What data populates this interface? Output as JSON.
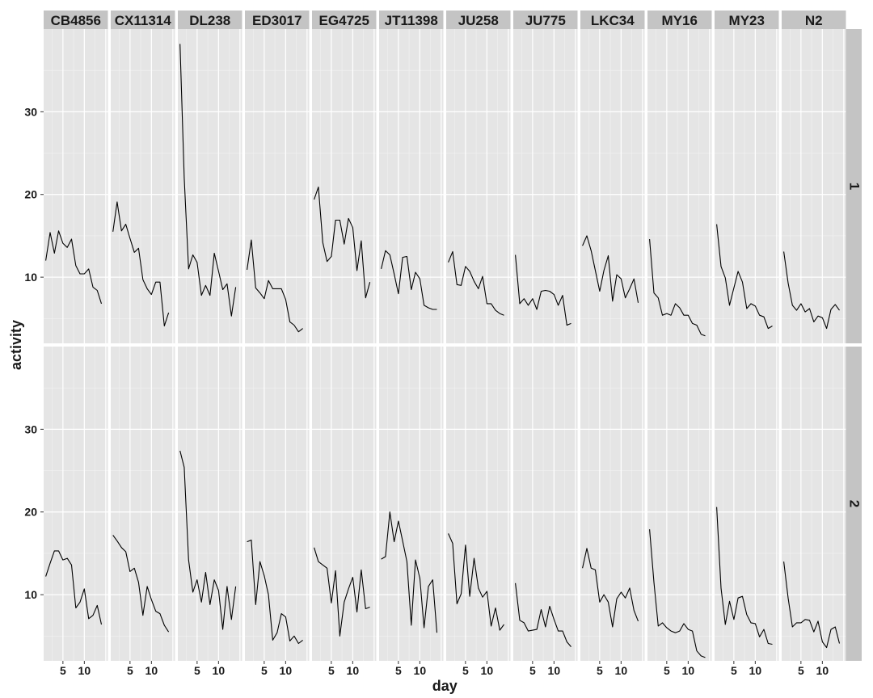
{
  "chart_data": {
    "type": "line",
    "xlabel": "day",
    "ylabel": "activity",
    "x_ticks": [
      5,
      10
    ],
    "y_ticks": [
      10,
      20,
      30
    ],
    "xlim": [
      0.5,
      15.5
    ],
    "ylim": [
      2,
      40
    ],
    "grid": true,
    "panel_background": "#e5e5e5",
    "strip_color": "#c4c4c4",
    "line_color": "#000000",
    "facet_rows": [
      "1",
      "2"
    ],
    "facet_cols": [
      "CB4856",
      "CX11314",
      "DL238",
      "ED3017",
      "EG4725",
      "JT11398",
      "JU258",
      "JU775",
      "LKC34",
      "MY16",
      "MY23",
      "N2"
    ],
    "panels": [
      {
        "row": "1",
        "col": "CB4856",
        "x": [
          1,
          2,
          3,
          4,
          5,
          6,
          7,
          8,
          9,
          10,
          11,
          12,
          13,
          14
        ],
        "y": [
          12,
          15.4,
          12.9,
          15.6,
          14.1,
          13.6,
          14.6,
          11.4,
          10.4,
          10.4,
          11,
          8.8,
          8.4,
          6.8
        ]
      },
      {
        "row": "1",
        "col": "CX11314",
        "x": [
          1,
          2,
          3,
          4,
          5,
          6,
          7,
          8,
          9,
          10,
          11,
          12,
          13,
          14
        ],
        "y": [
          15.5,
          19.1,
          15.6,
          16.4,
          14.7,
          13,
          13.5,
          9.7,
          8.6,
          7.9,
          9.4,
          9.4,
          4.1,
          5.7
        ]
      },
      {
        "row": "1",
        "col": "DL238",
        "x": [
          1,
          2,
          3,
          4,
          5,
          6,
          7,
          8,
          9,
          10,
          11,
          12,
          13,
          14
        ],
        "y": [
          38.2,
          22,
          11,
          12.7,
          11.8,
          7.8,
          9,
          7.8,
          12.9,
          10.7,
          8.5,
          9.2,
          5.3,
          8.8
        ]
      },
      {
        "row": "1",
        "col": "ED3017",
        "x": [
          1,
          2,
          3,
          4,
          5,
          6,
          7,
          8,
          9,
          10,
          11,
          12,
          13,
          14
        ],
        "y": [
          10.9,
          14.5,
          8.7,
          8.1,
          7.4,
          9.6,
          8.6,
          8.6,
          8.6,
          7.3,
          4.6,
          4.2,
          3.4,
          3.8
        ]
      },
      {
        "row": "1",
        "col": "EG4725",
        "x": [
          1,
          2,
          3,
          4,
          5,
          6,
          7,
          8,
          9,
          10,
          11,
          12,
          13,
          14
        ],
        "y": [
          19.4,
          20.9,
          14.2,
          11.9,
          12.5,
          16.9,
          16.9,
          14,
          17.1,
          16,
          10.8,
          14.4,
          7.5,
          9.4
        ]
      },
      {
        "row": "1",
        "col": "JT11398",
        "x": [
          1,
          2,
          3,
          4,
          5,
          6,
          7,
          8,
          9,
          10,
          11,
          12,
          13,
          14
        ],
        "y": [
          11,
          13.2,
          12.7,
          10.4,
          8,
          12.4,
          12.5,
          8.5,
          10.6,
          9.8,
          6.6,
          6.3,
          6.1,
          6.1
        ]
      },
      {
        "row": "1",
        "col": "JU258",
        "x": [
          1,
          2,
          3,
          4,
          5,
          6,
          7,
          8,
          9,
          10,
          11,
          12,
          13,
          14
        ],
        "y": [
          11.8,
          13.1,
          9.1,
          9,
          11.3,
          10.7,
          9.5,
          8.6,
          10.1,
          6.8,
          6.8,
          6,
          5.6,
          5.4
        ]
      },
      {
        "row": "1",
        "col": "JU775",
        "x": [
          1,
          2,
          3,
          4,
          5,
          6,
          7,
          8,
          9,
          10,
          11,
          12,
          13,
          14
        ],
        "y": [
          12.7,
          6.8,
          7.4,
          6.6,
          7.4,
          6.1,
          8.3,
          8.4,
          8.3,
          7.9,
          6.6,
          7.8,
          4.2,
          4.4
        ]
      },
      {
        "row": "1",
        "col": "LKC34",
        "x": [
          1,
          2,
          3,
          4,
          5,
          6,
          7,
          8,
          9,
          10,
          11,
          12,
          13,
          14
        ],
        "y": [
          13.8,
          15,
          13.2,
          10.8,
          8.3,
          10.8,
          12.6,
          7.1,
          10.3,
          9.8,
          7.5,
          8.6,
          9.8,
          6.9
        ]
      },
      {
        "row": "1",
        "col": "MY16",
        "x": [
          1,
          2,
          3,
          4,
          5,
          6,
          7,
          8,
          9,
          10,
          11,
          12,
          13,
          14
        ],
        "y": [
          14.6,
          8.1,
          7.5,
          5.4,
          5.6,
          5.4,
          6.8,
          6.3,
          5.4,
          5.4,
          4.4,
          4.2,
          3.1,
          2.9
        ]
      },
      {
        "row": "1",
        "col": "MY23",
        "x": [
          1,
          2,
          3,
          4,
          5,
          6,
          7,
          8,
          9,
          10,
          11,
          12,
          13,
          14
        ],
        "y": [
          16.4,
          11.3,
          9.9,
          6.6,
          8.7,
          10.7,
          9.4,
          6.2,
          6.8,
          6.5,
          5.4,
          5.2,
          3.8,
          4.1
        ]
      },
      {
        "row": "1",
        "col": "N2",
        "x": [
          1,
          2,
          3,
          4,
          5,
          6,
          7,
          8,
          9,
          10,
          11,
          12,
          13,
          14
        ],
        "y": [
          13.1,
          9.3,
          6.6,
          6,
          6.8,
          5.8,
          6.2,
          4.6,
          5.3,
          5.1,
          3.8,
          6.1,
          6.7,
          6
        ]
      },
      {
        "row": "2",
        "col": "CB4856",
        "x": [
          1,
          2,
          3,
          4,
          5,
          6,
          7,
          8,
          9,
          10,
          11,
          12,
          13,
          14
        ],
        "y": [
          12.2,
          13.8,
          15.3,
          15.3,
          14.2,
          14.4,
          13.6,
          8.4,
          9.1,
          10.7,
          7.1,
          7.5,
          8.7,
          6.4
        ]
      },
      {
        "row": "2",
        "col": "CX11314",
        "x": [
          1,
          2,
          3,
          4,
          5,
          6,
          7,
          8,
          9,
          10,
          11,
          12,
          13,
          14
        ],
        "y": [
          17.2,
          16.5,
          15.7,
          15.2,
          12.8,
          13.2,
          11.5,
          7.5,
          11,
          9.4,
          8,
          7.7,
          6.3,
          5.5
        ]
      },
      {
        "row": "2",
        "col": "DL238",
        "x": [
          1,
          2,
          3,
          4,
          5,
          6,
          7,
          8,
          9,
          10,
          11,
          12,
          13,
          14
        ],
        "y": [
          27.4,
          25.4,
          14.2,
          10.3,
          11.8,
          9.1,
          12.7,
          8.8,
          11.8,
          10.5,
          5.8,
          11,
          7,
          11
        ]
      },
      {
        "row": "2",
        "col": "ED3017",
        "x": [
          1,
          2,
          3,
          4,
          5,
          6,
          7,
          8,
          9,
          10,
          11,
          12,
          13,
          14
        ],
        "y": [
          16.4,
          16.6,
          8.8,
          14,
          12.3,
          10,
          4.5,
          5.4,
          7.7,
          7.3,
          4.4,
          5,
          4.1,
          4.5
        ]
      },
      {
        "row": "2",
        "col": "EG4725",
        "x": [
          1,
          2,
          3,
          4,
          5,
          6,
          7,
          8,
          9,
          10,
          11,
          12,
          13,
          14
        ],
        "y": [
          15.7,
          14,
          13.6,
          13.2,
          9,
          12.9,
          5,
          9.1,
          10.7,
          12.1,
          7.9,
          13,
          8.3,
          8.5
        ]
      },
      {
        "row": "2",
        "col": "JT11398",
        "x": [
          1,
          2,
          3,
          4,
          5,
          6,
          7,
          8,
          9,
          10,
          11,
          12,
          13,
          14
        ],
        "y": [
          14.3,
          14.6,
          20,
          16.4,
          18.9,
          16.5,
          14,
          6.3,
          14.2,
          12,
          6,
          11,
          11.8,
          5.4
        ]
      },
      {
        "row": "2",
        "col": "JU258",
        "x": [
          1,
          2,
          3,
          4,
          5,
          6,
          7,
          8,
          9,
          10,
          11,
          12,
          13,
          14
        ],
        "y": [
          17.4,
          16.2,
          8.9,
          10.1,
          16,
          9.8,
          14.4,
          10.8,
          9.7,
          10.4,
          6.2,
          8.4,
          5.7,
          6.4
        ]
      },
      {
        "row": "2",
        "col": "JU775",
        "x": [
          1,
          2,
          3,
          4,
          5,
          6,
          7,
          8,
          9,
          10,
          11,
          12,
          13,
          14
        ],
        "y": [
          11.4,
          6.9,
          6.6,
          5.6,
          5.7,
          5.8,
          8.2,
          6.1,
          8.6,
          7,
          5.6,
          5.6,
          4.3,
          3.7
        ]
      },
      {
        "row": "2",
        "col": "LKC34",
        "x": [
          1,
          2,
          3,
          4,
          5,
          6,
          7,
          8,
          9,
          10,
          11,
          12,
          13,
          14
        ],
        "y": [
          13.2,
          15.6,
          13.2,
          13,
          9.1,
          10,
          9.1,
          6.1,
          9.5,
          10.3,
          9.6,
          10.8,
          8.1,
          6.8
        ]
      },
      {
        "row": "2",
        "col": "MY16",
        "x": [
          1,
          2,
          3,
          4,
          5,
          6,
          7,
          8,
          9,
          10,
          11,
          12,
          13,
          14
        ],
        "y": [
          17.9,
          11.5,
          6.2,
          6.6,
          6,
          5.6,
          5.4,
          5.6,
          6.5,
          5.8,
          5.6,
          3.2,
          2.6,
          2.4
        ]
      },
      {
        "row": "2",
        "col": "MY23",
        "x": [
          1,
          2,
          3,
          4,
          5,
          6,
          7,
          8,
          9,
          10,
          11,
          12,
          13,
          14
        ],
        "y": [
          20.6,
          10.8,
          6.4,
          9.2,
          7,
          9.6,
          9.8,
          7.6,
          6.6,
          6.5,
          4.9,
          5.8,
          4.1,
          4
        ]
      },
      {
        "row": "2",
        "col": "N2",
        "x": [
          1,
          2,
          3,
          4,
          5,
          6,
          7,
          8,
          9,
          10,
          11,
          12,
          13,
          14
        ],
        "y": [
          14,
          9.6,
          6.1,
          6.6,
          6.6,
          7,
          6.9,
          5.5,
          6.8,
          4.3,
          3.6,
          5.8,
          6.1,
          4.1
        ]
      }
    ]
  }
}
